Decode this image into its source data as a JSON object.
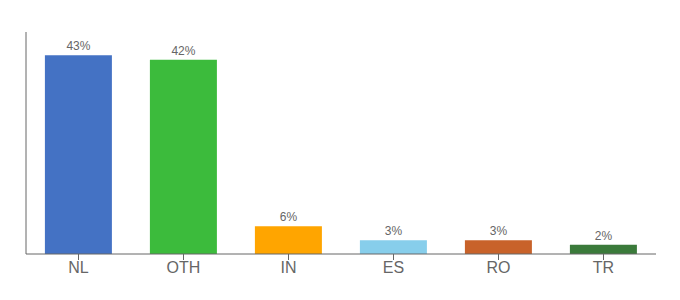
{
  "chart_data": {
    "type": "bar",
    "categories": [
      "NL",
      "OTH",
      "IN",
      "ES",
      "RO",
      "TR"
    ],
    "values": [
      43,
      42,
      6,
      3,
      3,
      2
    ],
    "value_labels": [
      "43%",
      "42%",
      "6%",
      "3%",
      "3%",
      "2%"
    ],
    "colors": [
      "#4472C4",
      "#3CBB3C",
      "#FFA500",
      "#87CEEB",
      "#C8622A",
      "#3A7A3A"
    ],
    "ylim": [
      0,
      48
    ],
    "data_labels": true,
    "tick_labels": "x",
    "grid": false
  }
}
